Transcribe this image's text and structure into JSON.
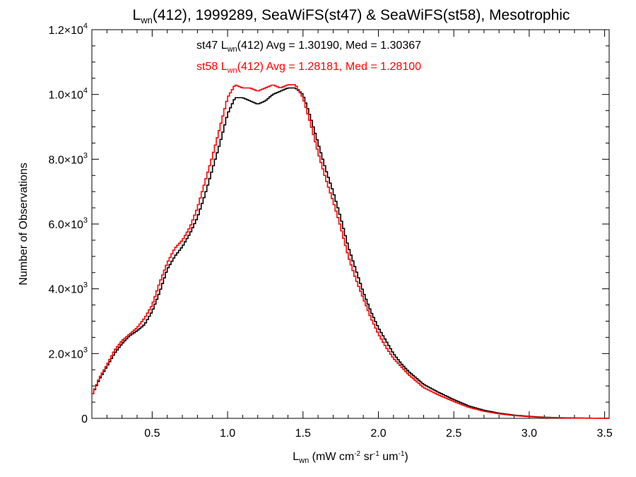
{
  "chart_data": {
    "type": "line",
    "title": {
      "prefix": "L",
      "prefix_sub": "wn",
      "rest": "(412), 1999289, SeaWiFS(st47) & SeaWiFS(st58), Mesotrophic"
    },
    "xlabel": {
      "main": "L",
      "sub": "wn",
      "units": [
        {
          "t": " (mW cm",
          "sup": "-2"
        },
        {
          "t": " sr",
          "sup": "-1"
        },
        {
          "t": " um",
          "sup": "-1"
        },
        {
          "t": ")",
          "sup": ""
        }
      ]
    },
    "ylabel": "Number of Observations",
    "xlim": [
      0.1,
      3.53
    ],
    "ylim": [
      0,
      12000
    ],
    "x_ticks": [
      {
        "value": 0.5,
        "label": "0.5"
      },
      {
        "value": 1.0,
        "label": "1.0"
      },
      {
        "value": 1.5,
        "label": "1.5"
      },
      {
        "value": 2.0,
        "label": "2.0"
      },
      {
        "value": 2.5,
        "label": "2.5"
      },
      {
        "value": 3.0,
        "label": "3.0"
      },
      {
        "value": 3.5,
        "label": "3.5"
      }
    ],
    "y_ticks": [
      {
        "value": 0,
        "mant": "0",
        "exp": ""
      },
      {
        "value": 2000,
        "mant": "2.0×10",
        "exp": "3"
      },
      {
        "value": 4000,
        "mant": "4.0×10",
        "exp": "3"
      },
      {
        "value": 6000,
        "mant": "6.0×10",
        "exp": "3"
      },
      {
        "value": 8000,
        "mant": "8.0×10",
        "exp": "3"
      },
      {
        "value": 10000,
        "mant": "1.0×10",
        "exp": "4"
      },
      {
        "value": 12000,
        "mant": "1.2×10",
        "exp": "4"
      }
    ],
    "x_minor_step": 0.1,
    "y_minor_step": 500,
    "grid": false,
    "annotations": [
      {
        "prefix": "st47 L",
        "sub": "wn",
        "rest": "(412) Avg = 1.30190, Med = 1.30367",
        "color": "#000000"
      },
      {
        "prefix": "st58 L",
        "sub": "wn",
        "rest": "(412) Avg = 1.28181, Med = 1.28100",
        "color": "#ff0000"
      }
    ],
    "bin_width": 0.0125,
    "series": [
      {
        "color": "#000000",
        "x": [
          0.1,
          0.15,
          0.2,
          0.25,
          0.3,
          0.35,
          0.4,
          0.45,
          0.5,
          0.55,
          0.6,
          0.65,
          0.7,
          0.75,
          0.8,
          0.85,
          0.9,
          0.95,
          1.0,
          1.05,
          1.1,
          1.15,
          1.2,
          1.25,
          1.3,
          1.35,
          1.4,
          1.45,
          1.5,
          1.55,
          1.6,
          1.65,
          1.7,
          1.75,
          1.8,
          1.85,
          1.9,
          1.95,
          2.0,
          2.05,
          2.1,
          2.15,
          2.2,
          2.25,
          2.3,
          2.4,
          2.5,
          2.6,
          2.7,
          2.8,
          2.9,
          3.0,
          3.1,
          3.2,
          3.3,
          3.4,
          3.53
        ],
        "y": [
          700,
          1200,
          1600,
          2000,
          2300,
          2550,
          2700,
          2900,
          3300,
          3900,
          4600,
          5000,
          5300,
          5700,
          6200,
          6900,
          7700,
          8500,
          9400,
          9900,
          9900,
          9800,
          9700,
          9800,
          10000,
          10100,
          10200,
          10200,
          10000,
          9300,
          8500,
          7700,
          7000,
          6200,
          5300,
          4600,
          3900,
          3300,
          2800,
          2400,
          2000,
          1700,
          1450,
          1250,
          1050,
          800,
          580,
          380,
          250,
          160,
          100,
          60,
          35,
          20,
          12,
          6,
          3
        ]
      },
      {
        "color": "#ff0000",
        "x": [
          0.1,
          0.15,
          0.2,
          0.25,
          0.3,
          0.35,
          0.4,
          0.45,
          0.5,
          0.55,
          0.6,
          0.65,
          0.7,
          0.75,
          0.8,
          0.85,
          0.9,
          0.95,
          1.0,
          1.05,
          1.1,
          1.15,
          1.2,
          1.25,
          1.3,
          1.35,
          1.4,
          1.45,
          1.5,
          1.55,
          1.6,
          1.65,
          1.7,
          1.75,
          1.8,
          1.85,
          1.9,
          1.95,
          2.0,
          2.05,
          2.1,
          2.15,
          2.2,
          2.25,
          2.3,
          2.4,
          2.5,
          2.6,
          2.7,
          2.8,
          2.9,
          3.0,
          3.1,
          3.2,
          3.3,
          3.4,
          3.53
        ],
        "y": [
          700,
          1250,
          1650,
          2100,
          2400,
          2600,
          2800,
          3100,
          3500,
          4200,
          4800,
          5250,
          5500,
          5900,
          6500,
          7300,
          8100,
          9000,
          9900,
          10300,
          10200,
          10200,
          10100,
          10200,
          10300,
          10200,
          10300,
          10300,
          9900,
          9100,
          8200,
          7400,
          6700,
          5900,
          5000,
          4300,
          3700,
          3100,
          2600,
          2200,
          1850,
          1600,
          1350,
          1150,
          950,
          720,
          520,
          340,
          220,
          140,
          85,
          50,
          28,
          16,
          9,
          4,
          2
        ]
      }
    ]
  }
}
